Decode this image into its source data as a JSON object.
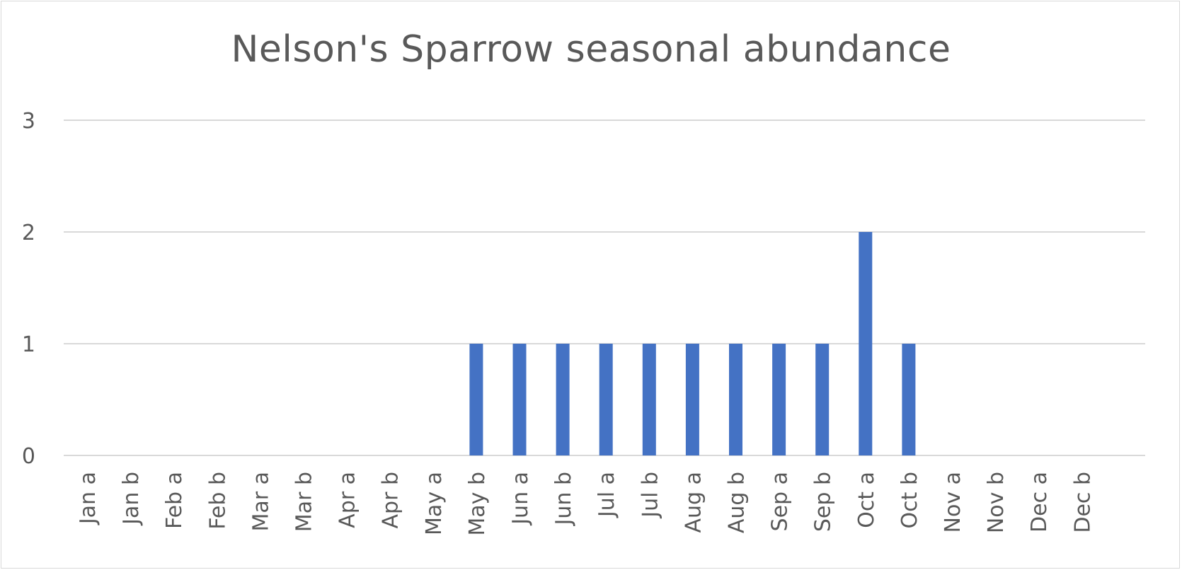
{
  "chart_data": {
    "type": "bar",
    "title": "Nelson's Sparrow seasonal abundance",
    "xlabel": "",
    "ylabel": "",
    "categories": [
      "Jan a",
      "Jan b",
      "Feb a",
      "Feb b",
      "Mar a",
      "Mar b",
      "Apr a",
      "Apr b",
      "May a",
      "May b",
      "Jun a",
      "Jun b",
      "Jul a",
      "Jul b",
      "Aug a",
      "Aug b",
      "Sep a",
      "Sep b",
      "Oct a",
      "Oct b",
      "Nov a",
      "Nov b",
      "Dec a",
      "Dec b"
    ],
    "values": [
      0,
      0,
      0,
      0,
      0,
      0,
      0,
      0,
      0,
      1,
      1,
      1,
      1,
      1,
      1,
      1,
      1,
      1,
      2,
      1,
      0,
      0,
      0,
      0
    ],
    "ylim": [
      0,
      3
    ],
    "yticks": [
      0,
      1,
      2,
      3
    ],
    "grid": true,
    "legend": "none",
    "bar_color": "#4472c4",
    "gridline_color": "#d9d9d9",
    "text_color": "#595959"
  }
}
